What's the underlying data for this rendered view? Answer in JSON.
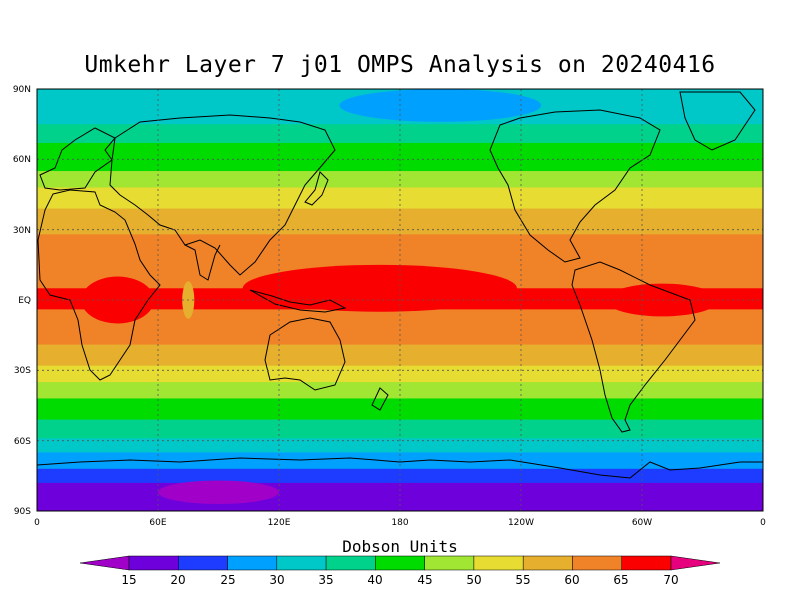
{
  "title": "Umkehr Layer 7 j01 OMPS Analysis on 20240416",
  "map": {
    "lat_labels": [
      "90N",
      "60N",
      "30N",
      "EQ",
      "30S",
      "60S",
      "90S"
    ],
    "lon_labels": [
      "0",
      "60E",
      "120E",
      "180",
      "120W",
      "60W",
      "0"
    ]
  },
  "colorbar": {
    "label": "Dobson Units",
    "ticks": [
      "15",
      "20",
      "25",
      "30",
      "35",
      "40",
      "45",
      "50",
      "55",
      "60",
      "65",
      "70"
    ],
    "colors": [
      "#a000c8",
      "#6e00dc",
      "#1e3cff",
      "#00a0ff",
      "#00c8c8",
      "#00d28c",
      "#00dc00",
      "#a0e632",
      "#e6dc32",
      "#e6af2d",
      "#f08228",
      "#fa0000",
      "#e6007d"
    ]
  },
  "chart_data": {
    "type": "heatmap",
    "title": "Umkehr Layer 7 j01 OMPS Analysis on 20240416",
    "units": "Dobson Units",
    "levels": [
      15,
      20,
      25,
      30,
      35,
      40,
      45,
      50,
      55,
      60,
      65,
      70
    ],
    "lat_range": [
      -90,
      90
    ],
    "lon_range": [
      0,
      360
    ],
    "zonal_profile": [
      {
        "lat": 85,
        "value": 32
      },
      {
        "lat": 75,
        "value": 35
      },
      {
        "lat": 62,
        "value": 43
      },
      {
        "lat": 55,
        "value": 45
      },
      {
        "lat": 45,
        "value": 52
      },
      {
        "lat": 35,
        "value": 57
      },
      {
        "lat": 25,
        "value": 61
      },
      {
        "lat": 10,
        "value": 64
      },
      {
        "lat": 0,
        "value": 66
      },
      {
        "lat": -15,
        "value": 62
      },
      {
        "lat": -25,
        "value": 57
      },
      {
        "lat": -35,
        "value": 50
      },
      {
        "lat": -45,
        "value": 43
      },
      {
        "lat": -55,
        "value": 38
      },
      {
        "lat": -65,
        "value": 30
      },
      {
        "lat": -72,
        "value": 25
      },
      {
        "lat": -78,
        "value": 20
      },
      {
        "lat": -85,
        "value": 17
      }
    ],
    "maxima": [
      {
        "region": "Africa/Indian Ocean",
        "lat": 0,
        "lon": 40,
        "value": ">65"
      },
      {
        "region": "Western-Central Pacific",
        "lat": 5,
        "lon": 170,
        "value": ">65"
      },
      {
        "region": "Atlantic/South America",
        "lat": 0,
        "lon": 310,
        "value": ">65"
      }
    ],
    "minima": [
      {
        "region": "Antarctica",
        "lat": -82,
        "lon": 90,
        "value": "<15"
      }
    ]
  }
}
